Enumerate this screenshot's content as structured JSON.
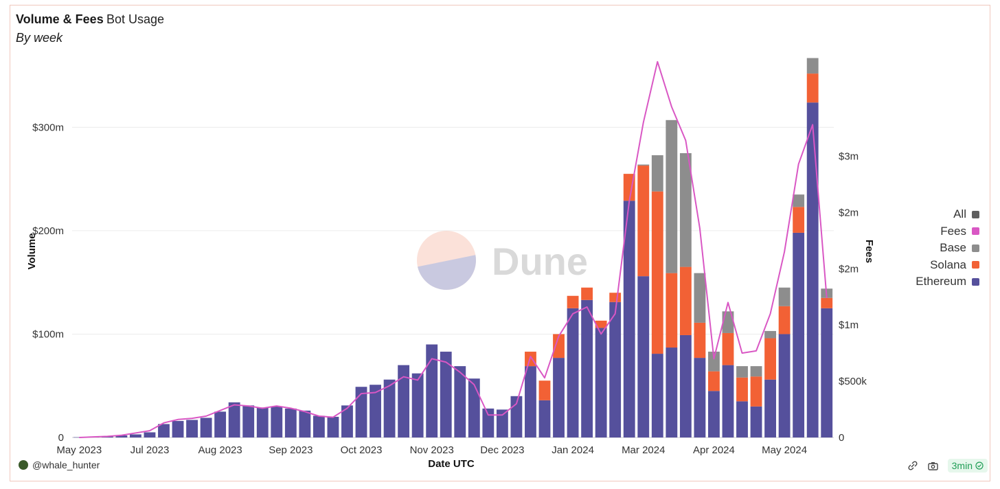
{
  "header": {
    "title": "Volume & Fees",
    "tab": "Bot Usage",
    "subtitle": "By week"
  },
  "watermark": "Dune",
  "footer": {
    "user": "@whale_hunter",
    "refresh_label": "3min"
  },
  "legend": [
    {
      "label": "All",
      "color": "#5f5f5f"
    },
    {
      "label": "Fees",
      "color": "#d957c4"
    },
    {
      "label": "Base",
      "color": "#8d8d8d"
    },
    {
      "label": "Solana",
      "color": "#f26135"
    },
    {
      "label": "Ethereum",
      "color": "#55509c"
    }
  ],
  "chart_data": {
    "type": "bar",
    "stacked": true,
    "xlabel": "Date UTC",
    "ylabel": "Volume",
    "y2label": "Fees",
    "ylim": [
      0,
      370
    ],
    "y2lim": [
      0,
      3.4
    ],
    "yticks": [
      0,
      100,
      200,
      300
    ],
    "ytick_labels": [
      "0",
      "$100m",
      "$200m",
      "$300m"
    ],
    "y2ticks": [
      0,
      0.5,
      1,
      1.5,
      2,
      2.5
    ],
    "y2tick_labels": [
      "0",
      "$500k",
      "$1m",
      "$2m",
      "$2m",
      "$3m"
    ],
    "xticks": [
      {
        "index": 0,
        "label": "May 2023"
      },
      {
        "index": 5,
        "label": "Jul 2023"
      },
      {
        "index": 10,
        "label": "Aug 2023"
      },
      {
        "index": 15,
        "label": "Sep 2023"
      },
      {
        "index": 20,
        "label": "Oct 2023"
      },
      {
        "index": 25,
        "label": "Nov 2023"
      },
      {
        "index": 30,
        "label": "Dec 2023"
      },
      {
        "index": 35,
        "label": "Jan 2024"
      },
      {
        "index": 40,
        "label": "Mar 2024"
      },
      {
        "index": 45,
        "label": "Apr 2024"
      },
      {
        "index": 50,
        "label": "May 2024"
      }
    ],
    "series": [
      {
        "name": "Ethereum",
        "color": "#55509c",
        "values": [
          0.3,
          0.5,
          1,
          2,
          3,
          5,
          13,
          16,
          17,
          19,
          25,
          34,
          31,
          29,
          30,
          28,
          26,
          21,
          20,
          31,
          49,
          51,
          56,
          70,
          62,
          90,
          83,
          69,
          57,
          28,
          27,
          40,
          69,
          36,
          77,
          125,
          133,
          106,
          131,
          229,
          156,
          81,
          87,
          99,
          77,
          45,
          70,
          35,
          30,
          56,
          100,
          198,
          324,
          125
        ]
      },
      {
        "name": "Solana",
        "color": "#f26135",
        "values": [
          0,
          0,
          0,
          0,
          0,
          0,
          0,
          0,
          0,
          0,
          0,
          0,
          0,
          0,
          0,
          0,
          0,
          0,
          0,
          0,
          0,
          0,
          0,
          0,
          0,
          0,
          0,
          0,
          0,
          0,
          0,
          0,
          14,
          19,
          23,
          12,
          12,
          7,
          9,
          26,
          107,
          157,
          72,
          66,
          34,
          19,
          31,
          23,
          29,
          40,
          27,
          25,
          28,
          10
        ]
      },
      {
        "name": "Base",
        "color": "#8d8d8d",
        "values": [
          0,
          0,
          0,
          0,
          0,
          0,
          0,
          0,
          0,
          0,
          0,
          0,
          0,
          0,
          0,
          0,
          0,
          0,
          0,
          0,
          0,
          0,
          0,
          0,
          0,
          0,
          0,
          0,
          0,
          0,
          0,
          0,
          0,
          0,
          0,
          0,
          0,
          0,
          0,
          0,
          1,
          35,
          148,
          110,
          48,
          19,
          21,
          11,
          10,
          7,
          18,
          12,
          15,
          9
        ]
      }
    ],
    "fees": {
      "name": "Fees",
      "color": "#d957c4",
      "values": [
        0,
        0.005,
        0.01,
        0.02,
        0.04,
        0.06,
        0.13,
        0.16,
        0.17,
        0.19,
        0.24,
        0.29,
        0.28,
        0.26,
        0.28,
        0.26,
        0.23,
        0.19,
        0.18,
        0.26,
        0.39,
        0.4,
        0.46,
        0.54,
        0.51,
        0.7,
        0.67,
        0.58,
        0.47,
        0.2,
        0.2,
        0.3,
        0.72,
        0.53,
        0.9,
        1.1,
        1.16,
        0.92,
        1.1,
        2.1,
        2.8,
        3.34,
        2.94,
        2.64,
        1.86,
        0.7,
        1.2,
        0.75,
        0.77,
        1.1,
        1.65,
        2.43,
        2.78,
        1.24
      ]
    }
  }
}
